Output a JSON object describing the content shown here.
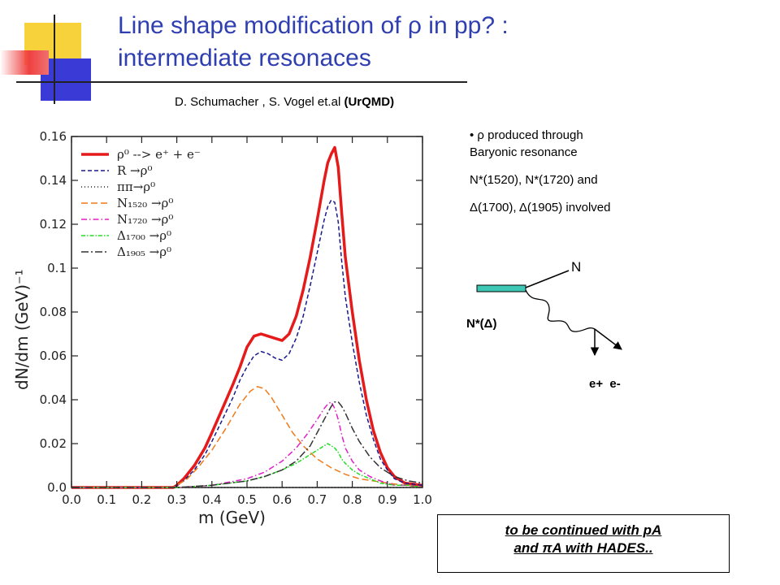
{
  "slide": {
    "title_line1": "Line shape modification of ρ in pp? :",
    "title_line2": "intermediate resonaces",
    "authors_prefix": "D. Schumacher , S. Vogel et.al ",
    "authors_model": "(UrQMD)",
    "bullet1_line1": "• ρ produced through",
    "bullet1_line2": "Baryonic resonance",
    "bullet2": "N*(1520), N*(1720) and",
    "bullet3": "Δ(1700), Δ(1905) involved",
    "diagram": {
      "label_n": "N",
      "label_resonance": "N*(Δ)",
      "label_leptons": "e+  e-"
    },
    "note_line1": "to be continued with pA",
    "note_line2": "and πA with HADES..",
    "colors": {
      "title": "#2f3fb0",
      "bar": "#3cc8b4"
    }
  },
  "chart_data": {
    "type": "line",
    "xlabel": "m (GeV)",
    "ylabel": "dN/dm (GeV)⁻¹",
    "xlim": [
      0.0,
      1.0
    ],
    "ylim": [
      0.0,
      0.16
    ],
    "x_ticks": [
      "0.0",
      "0.1",
      "0.2",
      "0.3",
      "0.4",
      "0.5",
      "0.6",
      "0.7",
      "0.8",
      "0.9",
      "1.0"
    ],
    "y_ticks": [
      "0.0",
      "0.02",
      "0.04",
      "0.06",
      "0.08",
      "0.1",
      "0.12",
      "0.14",
      "0.16"
    ],
    "legend_position": "top-left",
    "series": [
      {
        "name": "ρ⁰ --> e⁺ + e⁻",
        "color": "#e51a1a",
        "dash": "",
        "width": 3.5,
        "x": [
          0.0,
          0.29,
          0.3,
          0.32,
          0.35,
          0.38,
          0.4,
          0.43,
          0.46,
          0.48,
          0.5,
          0.52,
          0.54,
          0.56,
          0.58,
          0.6,
          0.62,
          0.64,
          0.66,
          0.68,
          0.7,
          0.72,
          0.73,
          0.74,
          0.75,
          0.76,
          0.77,
          0.78,
          0.8,
          0.82,
          0.84,
          0.86,
          0.88,
          0.9,
          0.92,
          0.95,
          1.0
        ],
        "y": [
          0,
          0,
          0.001,
          0.004,
          0.01,
          0.018,
          0.025,
          0.036,
          0.047,
          0.055,
          0.064,
          0.069,
          0.07,
          0.069,
          0.068,
          0.067,
          0.07,
          0.078,
          0.09,
          0.105,
          0.122,
          0.14,
          0.148,
          0.152,
          0.155,
          0.146,
          0.125,
          0.105,
          0.08,
          0.058,
          0.04,
          0.026,
          0.016,
          0.009,
          0.005,
          0.002,
          0.001
        ]
      },
      {
        "name": "R →ρ⁰",
        "color": "#1a1a8c",
        "dash": "5,3",
        "width": 1.5,
        "x": [
          0.0,
          0.29,
          0.3,
          0.32,
          0.35,
          0.38,
          0.4,
          0.43,
          0.46,
          0.48,
          0.5,
          0.52,
          0.54,
          0.56,
          0.58,
          0.6,
          0.62,
          0.64,
          0.66,
          0.68,
          0.7,
          0.72,
          0.73,
          0.74,
          0.75,
          0.76,
          0.77,
          0.78,
          0.8,
          0.82,
          0.84,
          0.86,
          0.88,
          0.9,
          0.92,
          0.95,
          1.0
        ],
        "y": [
          0,
          0,
          0.001,
          0.003,
          0.008,
          0.015,
          0.021,
          0.031,
          0.041,
          0.049,
          0.055,
          0.06,
          0.062,
          0.061,
          0.059,
          0.058,
          0.061,
          0.068,
          0.078,
          0.092,
          0.107,
          0.122,
          0.128,
          0.131,
          0.13,
          0.121,
          0.103,
          0.087,
          0.066,
          0.048,
          0.033,
          0.022,
          0.013,
          0.008,
          0.004,
          0.002,
          0.001
        ]
      },
      {
        "name": "ππ→ρ⁰",
        "color": "#222222",
        "dash": "1,3",
        "width": 1.5,
        "x": [
          0.0,
          1.0
        ],
        "y": [
          0,
          0
        ]
      },
      {
        "name": "N₁₅₂₀ →ρ⁰",
        "color": "#f07a1a",
        "dash": "8,4",
        "width": 1.5,
        "x": [
          0.0,
          0.29,
          0.3,
          0.33,
          0.36,
          0.4,
          0.44,
          0.48,
          0.51,
          0.53,
          0.55,
          0.57,
          0.6,
          0.63,
          0.66,
          0.7,
          0.74,
          0.78,
          0.82,
          0.86,
          0.9,
          0.95,
          1.0
        ],
        "y": [
          0,
          0,
          0.001,
          0.004,
          0.009,
          0.017,
          0.027,
          0.038,
          0.044,
          0.046,
          0.045,
          0.041,
          0.033,
          0.025,
          0.019,
          0.013,
          0.009,
          0.006,
          0.004,
          0.003,
          0.002,
          0.001,
          0
        ]
      },
      {
        "name": "N₁₇₂₀ →ρ⁰",
        "color": "#e020c8",
        "dash": "7,3,1.5,3",
        "width": 1.5,
        "x": [
          0.0,
          0.3,
          0.4,
          0.5,
          0.55,
          0.6,
          0.64,
          0.67,
          0.7,
          0.72,
          0.73,
          0.74,
          0.75,
          0.76,
          0.77,
          0.78,
          0.8,
          0.82,
          0.85,
          0.88,
          0.92,
          0.96,
          1.0
        ],
        "y": [
          0,
          0,
          0.001,
          0.004,
          0.007,
          0.012,
          0.018,
          0.024,
          0.031,
          0.036,
          0.038,
          0.039,
          0.036,
          0.031,
          0.024,
          0.018,
          0.012,
          0.008,
          0.005,
          0.003,
          0.001,
          0.001,
          0
        ]
      },
      {
        "name": "Δ₁₇₀₀ →ρ⁰",
        "color": "#22dd22",
        "dash": "5,2,1.5,2",
        "width": 1.5,
        "x": [
          0.0,
          0.3,
          0.4,
          0.5,
          0.55,
          0.6,
          0.64,
          0.67,
          0.7,
          0.72,
          0.73,
          0.74,
          0.75,
          0.76,
          0.77,
          0.78,
          0.8,
          0.82,
          0.85,
          0.88,
          0.92,
          0.96,
          1.0
        ],
        "y": [
          0,
          0,
          0.001,
          0.003,
          0.005,
          0.008,
          0.011,
          0.014,
          0.017,
          0.019,
          0.02,
          0.019,
          0.018,
          0.016,
          0.013,
          0.011,
          0.008,
          0.006,
          0.004,
          0.002,
          0.001,
          0.001,
          0
        ]
      },
      {
        "name": "Δ₁₉₀₅ →ρ⁰",
        "color": "#333333",
        "dash": "9,3,2,3",
        "width": 1.5,
        "x": [
          0.0,
          0.3,
          0.4,
          0.5,
          0.55,
          0.6,
          0.64,
          0.68,
          0.7,
          0.72,
          0.74,
          0.75,
          0.76,
          0.77,
          0.78,
          0.8,
          0.82,
          0.85,
          0.88,
          0.92,
          0.96,
          1.0
        ],
        "y": [
          0,
          0,
          0.001,
          0.003,
          0.005,
          0.008,
          0.012,
          0.019,
          0.025,
          0.031,
          0.037,
          0.039,
          0.039,
          0.037,
          0.034,
          0.027,
          0.021,
          0.014,
          0.009,
          0.005,
          0.003,
          0.002
        ]
      }
    ]
  }
}
